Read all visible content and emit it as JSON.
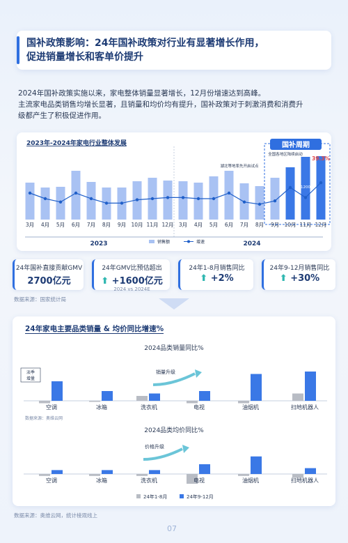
{
  "header": {
    "title_line1": "国补政策影响：24年国补政策对行业有显著增长作用，",
    "title_line2": "促进销量增长和客单价提升"
  },
  "intro": {
    "line1": "2024年国补政策实施以来，家电整体销量显著增长，12月份增速达到高峰。",
    "line2": "主流家电品类销售均增长显著，且销量和均价均有提升，国补政策对于刺激消费和消费升",
    "line3": "级都产生了积极促进作用。"
  },
  "colors": {
    "accent": "#2f6fe0",
    "bar_light": "#a9c2f3",
    "bar_dark": "#3a78e6",
    "line": "#1f5fc9",
    "gray_bar": "#b8bcc4"
  },
  "chart_data": [
    {
      "type": "bar",
      "title": "2023年-2024年家电行业整体发展",
      "categories": [
        "3月",
        "4月",
        "5月",
        "6月",
        "7月",
        "8月",
        "9月",
        "10月",
        "11月",
        "12月",
        "3月",
        "4月",
        "5月",
        "6月",
        "7月",
        "8月",
        "9月",
        "10月",
        "11月",
        "12月"
      ],
      "year_labels": [
        "2023",
        "2024"
      ],
      "series": [
        {
          "name": "销售额",
          "values": [
            53,
            46,
            47,
            70,
            54,
            46,
            46,
            55,
            60,
            56,
            55,
            53,
            62,
            70,
            52,
            48,
            60,
            75,
            90,
            91
          ]
        },
        {
          "name": "增速",
          "values": [
            30,
            25,
            22,
            30,
            25,
            21,
            21,
            24,
            25,
            26,
            26,
            25,
            25,
            30,
            22,
            20,
            23,
            35,
            26,
            39.3
          ]
        }
      ],
      "annotations": [
        "湖北等地率先开启试点",
        "全国各地区陆续启动",
        "国补周期",
        "39.3%",
        "1200"
      ]
    },
    {
      "type": "bar",
      "title": "2024品类销量同比%",
      "categories": [
        "空调",
        "冰箱",
        "洗衣机",
        "电视",
        "油烟机",
        "扫地机器人"
      ],
      "series": [
        {
          "name": "24年1-8月",
          "values": [
            -1,
            0,
            2,
            -1,
            -1,
            3
          ]
        },
        {
          "name": "24年9-12月",
          "values": [
            8,
            4,
            3,
            4,
            11,
            12
          ]
        }
      ],
      "annotations": [
        "淡季增量",
        "销量升级"
      ]
    },
    {
      "type": "bar",
      "title": "2024品类均价同比%",
      "categories": [
        "空调",
        "冰箱",
        "洗衣机",
        "电视",
        "油烟机",
        "扫地机器人"
      ],
      "series": [
        {
          "name": "24年1-8月",
          "values": [
            -1,
            -1,
            -1,
            -5,
            -1,
            -2
          ]
        },
        {
          "name": "24年9-12月",
          "values": [
            2,
            2,
            2,
            5,
            9,
            3
          ]
        }
      ],
      "annotations": [
        "价格升级"
      ]
    }
  ],
  "chart1_legend": {
    "bar": "销售额",
    "line": "增速"
  },
  "stats": [
    {
      "label": "24年国补直接贡献GMV",
      "value": "2700亿元",
      "sub": ""
    },
    {
      "label": "24年GMV比预估超出",
      "value": "+1600亿元",
      "sub": "2024 vs 2024E"
    },
    {
      "label": "24年1-8月销售同比",
      "value": "+2%",
      "sub": ""
    },
    {
      "label": "24年9-12月销售同比",
      "value": "+30%",
      "sub": ""
    }
  ],
  "source1": "数据来源：国家统计局",
  "section2_title": "24年家电主要品类销量 & 均价同比增速%",
  "source2": "数据来源：奥维云网",
  "legend2": {
    "a": "24年1-8月",
    "b": "24年9-12月"
  },
  "source3": "数据来源：奥维云网，统计棱观线上",
  "page_number": "07"
}
